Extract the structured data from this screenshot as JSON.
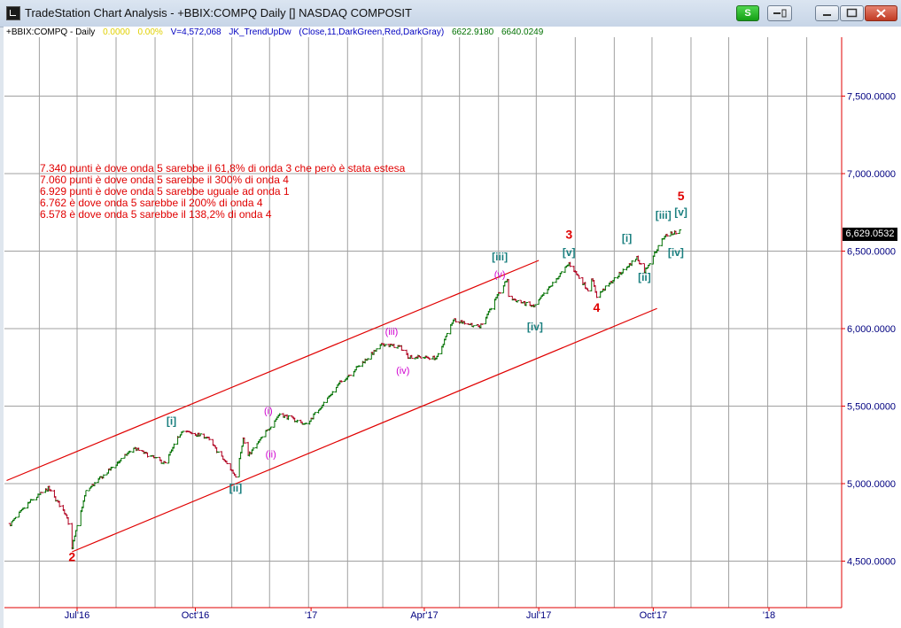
{
  "window": {
    "title": "TradeStation Chart Analysis - +BBIX:COMPQ Daily [] NASDAQ COMPOSIT",
    "s_button": "S",
    "minimize_icon": "minimize-icon",
    "maximize_icon": "maximize-icon",
    "close_icon": "close-icon"
  },
  "colors": {
    "up": "#007000",
    "down": "#b00020",
    "channel": "#e00000",
    "grid": "#a0a0a0",
    "axis": "#000080"
  },
  "status": {
    "symbol": "+BBIX:COMPQ - Daily",
    "change": "0.0000",
    "change_pct": "0.00%",
    "volume": "V=4,572,068",
    "indicator": "JK_TrendUpDw",
    "params": "(Close,11,DarkGreen,Red,DarkGray)",
    "value1": "6622.9180",
    "value2": "6640.0249"
  },
  "annotations": [
    "7.340 punti è dove onda 5 sarebbe il 61,8% di onda 3 che però è stata estesa",
    "7.060 punti è dove onda 5 sarebbe il 300% di onda 4",
    "6.929 punti è dove onda 5 sarebbe uguale ad onda 1",
    "6.762 è dove onda 5 sarebbe il 200% di onda 4",
    "6.578  è dove onda 5 sarebbe il 138,2% di onda 4"
  ],
  "last_price": "6,629.0532",
  "chart_data": {
    "type": "bar",
    "x_ticks": [
      {
        "label": "Jul'16",
        "date": "2016-07-01"
      },
      {
        "label": "Oct'16",
        "date": "2016-10-03"
      },
      {
        "label": "'17",
        "date": "2017-01-03"
      },
      {
        "label": "Apr'17",
        "date": "2017-04-03"
      },
      {
        "label": "Jul'17",
        "date": "2017-07-03"
      },
      {
        "label": "Oct'17",
        "date": "2017-10-02"
      },
      {
        "label": "'18",
        "date": "2018-01-02"
      }
    ],
    "y_ticks": [
      "7,500.0000",
      "7,000.0000",
      "6,500.0000",
      "6,000.0000",
      "5,500.0000",
      "5,000.0000",
      "4,500.0000"
    ],
    "ylim": [
      4200,
      7880
    ],
    "price_path": [
      [
        "2016-05-09",
        4740
      ],
      [
        "2016-05-24",
        4880
      ],
      [
        "2016-06-08",
        4970
      ],
      [
        "2016-06-23",
        4790
      ],
      [
        "2016-06-27",
        4590
      ],
      [
        "2016-07-08",
        4950
      ],
      [
        "2016-08-15",
        5230
      ],
      [
        "2016-09-09",
        5130
      ],
      [
        "2016-09-22",
        5340
      ],
      [
        "2016-10-12",
        5300
      ],
      [
        "2016-11-04",
        5050
      ],
      [
        "2016-11-10",
        5290
      ],
      [
        "2016-11-14",
        5180
      ],
      [
        "2016-12-09",
        5450
      ],
      [
        "2016-12-30",
        5380
      ],
      [
        "2017-01-26",
        5650
      ],
      [
        "2017-03-01",
        5900
      ],
      [
        "2017-03-15",
        5880
      ],
      [
        "2017-03-21",
        5820
      ],
      [
        "2017-04-13",
        5810
      ],
      [
        "2017-04-26",
        6060
      ],
      [
        "2017-05-17",
        6010
      ],
      [
        "2017-06-08",
        6320
      ],
      [
        "2017-06-09",
        6200
      ],
      [
        "2017-06-29",
        6140
      ],
      [
        "2017-07-27",
        6420
      ],
      [
        "2017-08-11",
        6250
      ],
      [
        "2017-08-14",
        6330
      ],
      [
        "2017-08-18",
        6210
      ],
      [
        "2017-09-19",
        6460
      ],
      [
        "2017-09-25",
        6370
      ],
      [
        "2017-10-11",
        6600
      ],
      [
        "2017-10-23",
        6630
      ]
    ],
    "channel": {
      "upper": [
        [
          "2016-05-06",
          5020
        ],
        [
          "2017-07-03",
          6440
        ]
      ],
      "lower": [
        [
          "2016-06-27",
          4560
        ],
        [
          "2017-10-05",
          6130
        ]
      ]
    },
    "wave_labels": [
      {
        "text": "2",
        "date": "2016-06-27",
        "price": 4500,
        "color": "#e00000",
        "size": 14,
        "bold": true
      },
      {
        "text": "[i]",
        "date": "2016-09-14",
        "price": 5380,
        "color": "#1a7f7f",
        "size": 12,
        "bold": true
      },
      {
        "text": "[ii]",
        "date": "2016-11-04",
        "price": 4950,
        "color": "#1a7f7f",
        "size": 12,
        "bold": true
      },
      {
        "text": "(i)",
        "date": "2016-11-30",
        "price": 5450,
        "color": "#d000d0",
        "size": 11,
        "bold": false
      },
      {
        "text": "(ii)",
        "date": "2016-12-02",
        "price": 5170,
        "color": "#d000d0",
        "size": 11,
        "bold": false
      },
      {
        "text": "(iii)",
        "date": "2017-03-08",
        "price": 5960,
        "color": "#d000d0",
        "size": 11,
        "bold": false
      },
      {
        "text": "(iv)",
        "date": "2017-03-17",
        "price": 5710,
        "color": "#d000d0",
        "size": 11,
        "bold": false
      },
      {
        "text": "[iii]",
        "date": "2017-06-02",
        "price": 6440,
        "color": "#1a7f7f",
        "size": 12,
        "bold": true
      },
      {
        "text": "(v)",
        "date": "2017-06-02",
        "price": 6330,
        "color": "#d000d0",
        "size": 11,
        "bold": false
      },
      {
        "text": "[iv]",
        "date": "2017-06-30",
        "price": 5990,
        "color": "#1a7f7f",
        "size": 12,
        "bold": true
      },
      {
        "text": "3",
        "date": "2017-07-27",
        "price": 6580,
        "color": "#e00000",
        "size": 14,
        "bold": true
      },
      {
        "text": "[v]",
        "date": "2017-07-27",
        "price": 6470,
        "color": "#1a7f7f",
        "size": 12,
        "bold": true
      },
      {
        "text": "4",
        "date": "2017-08-18",
        "price": 6110,
        "color": "#e00000",
        "size": 14,
        "bold": true
      },
      {
        "text": "[i]",
        "date": "2017-09-11",
        "price": 6560,
        "color": "#1a7f7f",
        "size": 12,
        "bold": true
      },
      {
        "text": "[ii]",
        "date": "2017-09-25",
        "price": 6310,
        "color": "#1a7f7f",
        "size": 12,
        "bold": true
      },
      {
        "text": "[iii]",
        "date": "2017-10-10",
        "price": 6710,
        "color": "#1a7f7f",
        "size": 12,
        "bold": true
      },
      {
        "text": "5",
        "date": "2017-10-24",
        "price": 6830,
        "color": "#e00000",
        "size": 14,
        "bold": true
      },
      {
        "text": "[v]",
        "date": "2017-10-24",
        "price": 6730,
        "color": "#1a7f7f",
        "size": 12,
        "bold": true
      },
      {
        "text": "[iv]",
        "date": "2017-10-20",
        "price": 6470,
        "color": "#1a7f7f",
        "size": 12,
        "bold": true
      }
    ]
  }
}
